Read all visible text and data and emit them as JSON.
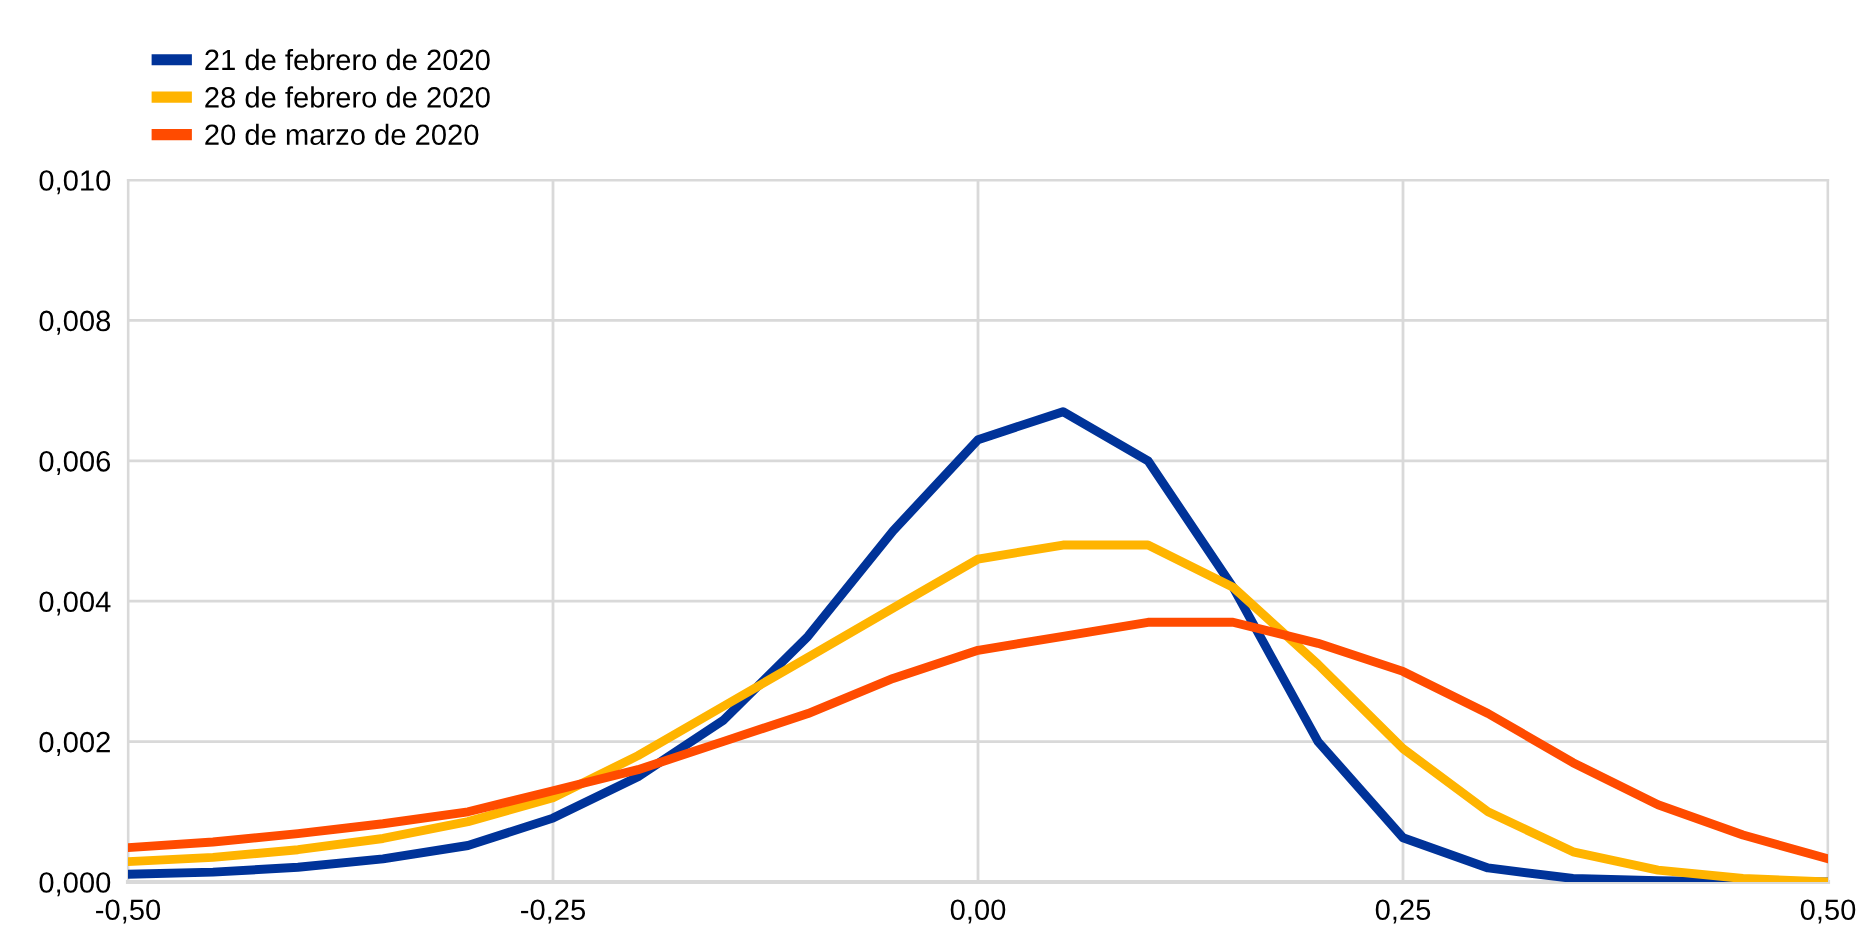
{
  "chart_data": {
    "type": "line",
    "x": [
      -0.5,
      -0.45,
      -0.4,
      -0.35,
      -0.3,
      -0.25,
      -0.2,
      -0.15,
      -0.1,
      -0.05,
      0,
      0.05,
      0.1,
      0.15,
      0.2,
      0.25,
      0.3,
      0.35,
      0.4,
      0.45,
      0.5
    ],
    "series": [
      {
        "name": "21 de febrero de 2020",
        "color": "#003399",
        "values": [
          0.00011,
          0.00014,
          0.00021,
          0.00033,
          0.00052,
          0.00091,
          0.0015,
          0.0023,
          0.0035,
          0.005,
          0.0063,
          0.0067,
          0.006,
          0.0042,
          0.002,
          0.00063,
          0.0002,
          5e-05,
          2e-05,
          0,
          0
        ]
      },
      {
        "name": "28 de febrero de 2020",
        "color": "#ffb400",
        "values": [
          0.00029,
          0.00035,
          0.00046,
          0.00062,
          0.00086,
          0.0012,
          0.0018,
          0.0025,
          0.0032,
          0.0039,
          0.0046,
          0.0048,
          0.0048,
          0.0042,
          0.0031,
          0.0019,
          0.001,
          0.00043,
          0.00017,
          5e-05,
          0
        ]
      },
      {
        "name": "20 de marzo de 2020",
        "color": "#ff4b00",
        "values": [
          0.00049,
          0.00057,
          0.00069,
          0.00083,
          0.001,
          0.0013,
          0.0016,
          0.002,
          0.0024,
          0.0029,
          0.0033,
          0.0035,
          0.0037,
          0.0037,
          0.0034,
          0.003,
          0.0024,
          0.0017,
          0.0011,
          0.00067,
          0.00033
        ]
      }
    ],
    "xlim": [
      -0.5,
      0.5
    ],
    "xticks": [
      {
        "value": -0.5,
        "label": "-0,50"
      },
      {
        "value": -0.25,
        "label": "-0,25"
      },
      {
        "value": 0,
        "label": "0,00"
      },
      {
        "value": 0.25,
        "label": "0,25"
      },
      {
        "value": 0.5,
        "label": "0,50"
      }
    ],
    "ylim": [
      0,
      0.01
    ],
    "yticks": [
      {
        "value": 0,
        "label": "0,000"
      },
      {
        "value": 0.002,
        "label": "0,002"
      },
      {
        "value": 0.004,
        "label": "0,004"
      },
      {
        "value": 0.006,
        "label": "0,006"
      },
      {
        "value": 0.008,
        "label": "0,008"
      },
      {
        "value": 0.01,
        "label": "0,010"
      }
    ],
    "grid": true,
    "legend": "top left",
    "marker": "none",
    "line_style": "solid"
  }
}
